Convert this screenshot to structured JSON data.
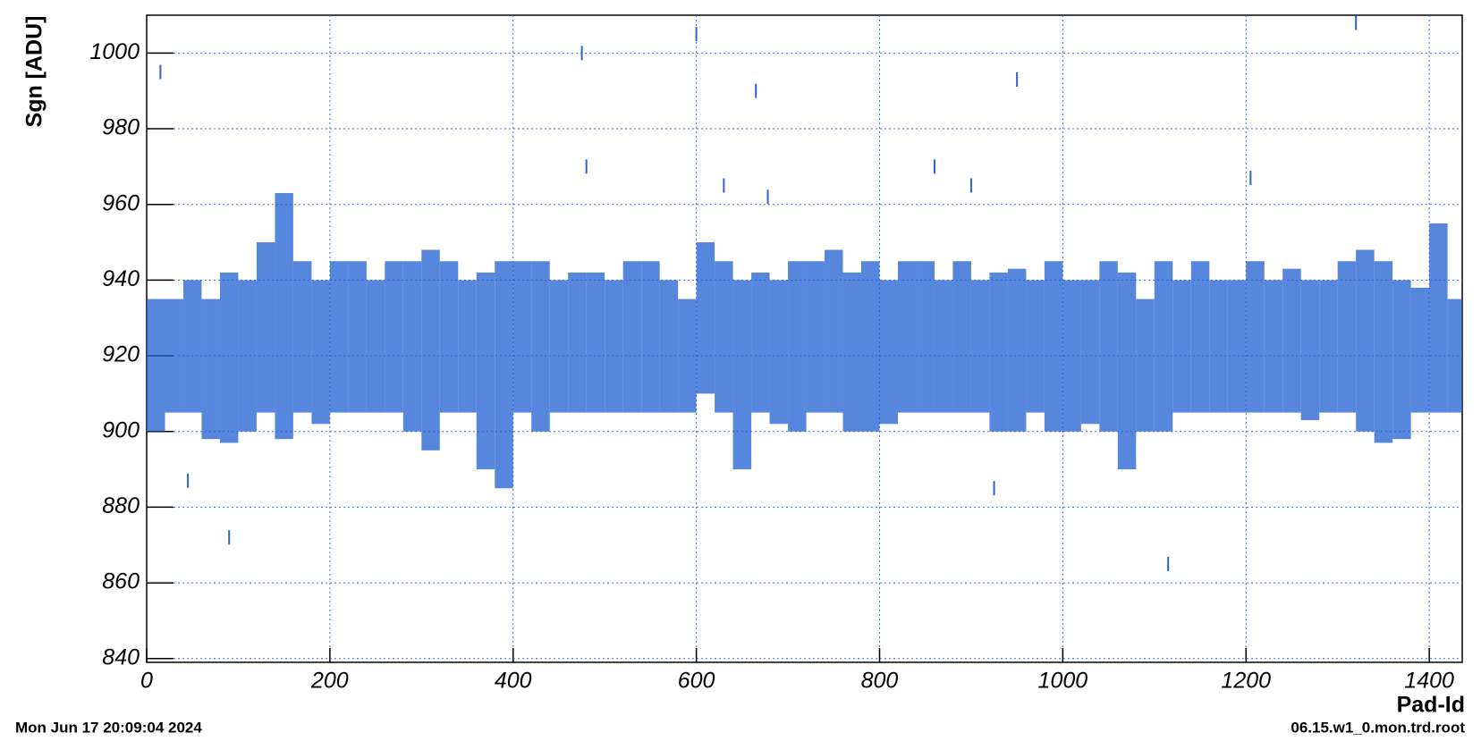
{
  "chart_data": {
    "type": "range",
    "x_label": "Pad-Id",
    "y_label": "Sgn [ADU]",
    "footer_left": "Mon Jun 17 20:09:04 2024",
    "footer_right": "06.15.w1_0.mon.trd.root",
    "color": "#1f5fd0",
    "outlier_color": "#2a62d4",
    "grid": true,
    "xlim": [
      0,
      1436
    ],
    "ylim": [
      839,
      1010
    ],
    "xticks": [
      0,
      200,
      400,
      600,
      800,
      1000,
      1200,
      1400
    ],
    "yticks": [
      840,
      860,
      880,
      900,
      920,
      940,
      960,
      980,
      1000
    ],
    "bins": [
      0,
      20,
      40,
      60,
      80,
      100,
      120,
      140,
      160,
      180,
      200,
      220,
      240,
      260,
      280,
      300,
      320,
      340,
      360,
      380,
      400,
      420,
      440,
      460,
      480,
      500,
      520,
      540,
      560,
      580,
      600,
      620,
      640,
      660,
      680,
      700,
      720,
      740,
      760,
      780,
      800,
      820,
      840,
      860,
      880,
      900,
      920,
      940,
      960,
      980,
      1000,
      1020,
      1040,
      1060,
      1080,
      1100,
      1120,
      1140,
      1160,
      1180,
      1200,
      1220,
      1240,
      1260,
      1280,
      1300,
      1320,
      1340,
      1360,
      1380,
      1400,
      1420,
      1436
    ],
    "low": [
      900,
      905,
      905,
      898,
      897,
      900,
      905,
      898,
      905,
      902,
      905,
      905,
      905,
      905,
      900,
      895,
      905,
      905,
      890,
      885,
      905,
      900,
      905,
      905,
      905,
      905,
      905,
      905,
      905,
      905,
      910,
      905,
      890,
      905,
      902,
      900,
      905,
      905,
      900,
      900,
      902,
      905,
      905,
      905,
      905,
      905,
      900,
      900,
      905,
      900,
      900,
      902,
      900,
      890,
      900,
      900,
      905,
      905,
      905,
      905,
      905,
      905,
      905,
      903,
      905,
      905,
      900,
      897,
      898,
      905,
      905,
      905
    ],
    "high": [
      935,
      935,
      940,
      935,
      942,
      940,
      950,
      963,
      945,
      940,
      945,
      945,
      940,
      945,
      945,
      948,
      945,
      940,
      942,
      945,
      945,
      945,
      940,
      942,
      942,
      940,
      945,
      945,
      940,
      935,
      950,
      945,
      940,
      942,
      940,
      945,
      945,
      948,
      942,
      945,
      940,
      945,
      945,
      940,
      945,
      940,
      942,
      943,
      940,
      945,
      940,
      940,
      945,
      942,
      935,
      945,
      940,
      945,
      940,
      940,
      945,
      940,
      943,
      940,
      940,
      945,
      948,
      945,
      940,
      938,
      955,
      935
    ],
    "points": {
      "x": [
        15,
        45,
        90,
        475,
        480,
        600,
        630,
        665,
        678,
        860,
        900,
        925,
        950,
        1115,
        1205,
        1320
      ],
      "y": [
        995,
        887,
        872,
        1000,
        970,
        1005,
        965,
        990,
        962,
        970,
        965,
        885,
        993,
        865,
        967,
        1008
      ]
    }
  }
}
